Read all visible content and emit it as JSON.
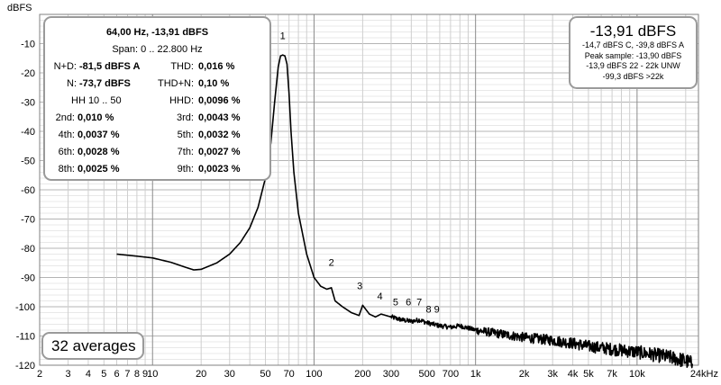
{
  "chart_data": {
    "type": "line",
    "ylabel": "dBFS",
    "xlabel": "",
    "x_scale": "log",
    "xlim": [
      2,
      24000
    ],
    "ylim": [
      -120,
      0
    ],
    "grid": true,
    "x_tick_labels": [
      {
        "v": 2,
        "t": "2"
      },
      {
        "v": 3,
        "t": "3"
      },
      {
        "v": 4,
        "t": "4"
      },
      {
        "v": 5,
        "t": "5"
      },
      {
        "v": 6,
        "t": "6"
      },
      {
        "v": 7,
        "t": "7"
      },
      {
        "v": 8,
        "t": "8"
      },
      {
        "v": 9,
        "t": "9"
      },
      {
        "v": 10,
        "t": "10"
      },
      {
        "v": 20,
        "t": "20"
      },
      {
        "v": 30,
        "t": "30"
      },
      {
        "v": 50,
        "t": "50"
      },
      {
        "v": 70,
        "t": "70"
      },
      {
        "v": 100,
        "t": "100"
      },
      {
        "v": 200,
        "t": "200"
      },
      {
        "v": 300,
        "t": "300"
      },
      {
        "v": 500,
        "t": "500"
      },
      {
        "v": 700,
        "t": "700"
      },
      {
        "v": 1000,
        "t": "1k"
      },
      {
        "v": 2000,
        "t": "2k"
      },
      {
        "v": 3000,
        "t": "3k"
      },
      {
        "v": 4000,
        "t": "4k"
      },
      {
        "v": 5000,
        "t": "5k"
      },
      {
        "v": 7000,
        "t": "7k"
      },
      {
        "v": 10000,
        "t": "10k"
      },
      {
        "v": 24000,
        "t": "24kHz"
      }
    ],
    "y_tick_labels": [
      {
        "v": -10,
        "t": "-10"
      },
      {
        "v": -20,
        "t": "-20"
      },
      {
        "v": -30,
        "t": "-30"
      },
      {
        "v": -40,
        "t": "-40"
      },
      {
        "v": -50,
        "t": "-50"
      },
      {
        "v": -60,
        "t": "-60"
      },
      {
        "v": -70,
        "t": "-70"
      },
      {
        "v": -80,
        "t": "-80"
      },
      {
        "v": -90,
        "t": "-90"
      },
      {
        "v": -100,
        "t": "-100"
      },
      {
        "v": -110,
        "t": "-110"
      },
      {
        "v": -120,
        "t": "-120"
      }
    ],
    "series": [
      {
        "color": "#000000",
        "x": [
          6,
          8,
          10,
          13,
          16,
          18,
          20,
          25,
          30,
          35,
          40,
          45,
          50,
          54,
          57,
          60,
          62,
          64,
          66,
          68,
          70,
          72,
          75,
          80,
          90,
          100,
          110,
          120,
          128,
          135,
          150,
          170,
          190,
          200,
          220,
          240,
          260,
          300,
          350,
          400,
          450,
          500,
          600,
          700,
          800,
          1000,
          1500,
          2000,
          3000,
          4000,
          5000,
          7000,
          10000,
          15000,
          20000,
          22000
        ],
        "y": [
          -82,
          -82.7,
          -83.3,
          -84.8,
          -86.5,
          -87.4,
          -87.2,
          -85,
          -82,
          -78,
          -73,
          -66,
          -56,
          -44,
          -30,
          -18,
          -14.2,
          -13.9,
          -14.2,
          -17,
          -27,
          -40,
          -54,
          -68,
          -82,
          -90,
          -93,
          -94,
          -93.5,
          -98,
          -100,
          -102,
          -103,
          -99.5,
          -102.5,
          -103.5,
          -102.5,
          -103.5,
          -104.5,
          -105,
          -104.5,
          -105.5,
          -106.5,
          -107,
          -106.5,
          -108,
          -109.5,
          -110.5,
          -111.5,
          -112.5,
          -113.5,
          -114.5,
          -115.5,
          -117,
          -118.5,
          -119.5
        ]
      }
    ],
    "annotations": [
      {
        "text": "1",
        "x": 64,
        "y": -8.5
      },
      {
        "text": "2",
        "x": 128,
        "y": -86
      },
      {
        "text": "3",
        "x": 192,
        "y": -94
      },
      {
        "text": "4",
        "x": 256,
        "y": -97.5
      },
      {
        "text": "5",
        "x": 320,
        "y": -99.5
      },
      {
        "text": "6",
        "x": 384,
        "y": -99.5
      },
      {
        "text": "7",
        "x": 448,
        "y": -99.5
      },
      {
        "text": "8",
        "x": 512,
        "y": -102
      },
      {
        "text": "9",
        "x": 576,
        "y": -102
      }
    ]
  },
  "stats": {
    "header1": "64,00 Hz, -13,91 dBFS",
    "header2": "Span: 0 .. 22.800 Hz",
    "nd_label": "N+D:",
    "nd_value": "-81,5 dBFS A",
    "thd_label": "THD:",
    "thd_value": "0,016 %",
    "n_label": "N:",
    "n_value": "-73,7 dBFS",
    "thdn_label": "THD+N:",
    "thdn_value": "0,10 %",
    "hh_label": "HH 10 .. 50",
    "hhd_label": "HHD:",
    "hhd_value": "0,0096 %",
    "h2_label": "2nd:",
    "h2_value": "0,010 %",
    "h3_label": "3rd:",
    "h3_value": "0,0043 %",
    "h4_label": "4th:",
    "h4_value": "0,0037 %",
    "h5_label": "5th:",
    "h5_value": "0,0032 %",
    "h6_label": "6th:",
    "h6_value": "0,0028 %",
    "h7_label": "7th:",
    "h7_value": "0,0027 %",
    "h8_label": "8th:",
    "h8_value": "0,0025 %",
    "h9_label": "9th:",
    "h9_value": "0,0023 %"
  },
  "level": {
    "main": "-13,91 dBFS",
    "line1": "-14,7 dBFS C, -39,8 dBFS A",
    "line2": "Peak sample: -13,90 dBFS",
    "line3": "-13,9 dBFS 22 - 22k UNW",
    "line4": "-99,3 dBFS >22k"
  },
  "averages": "32 averages"
}
